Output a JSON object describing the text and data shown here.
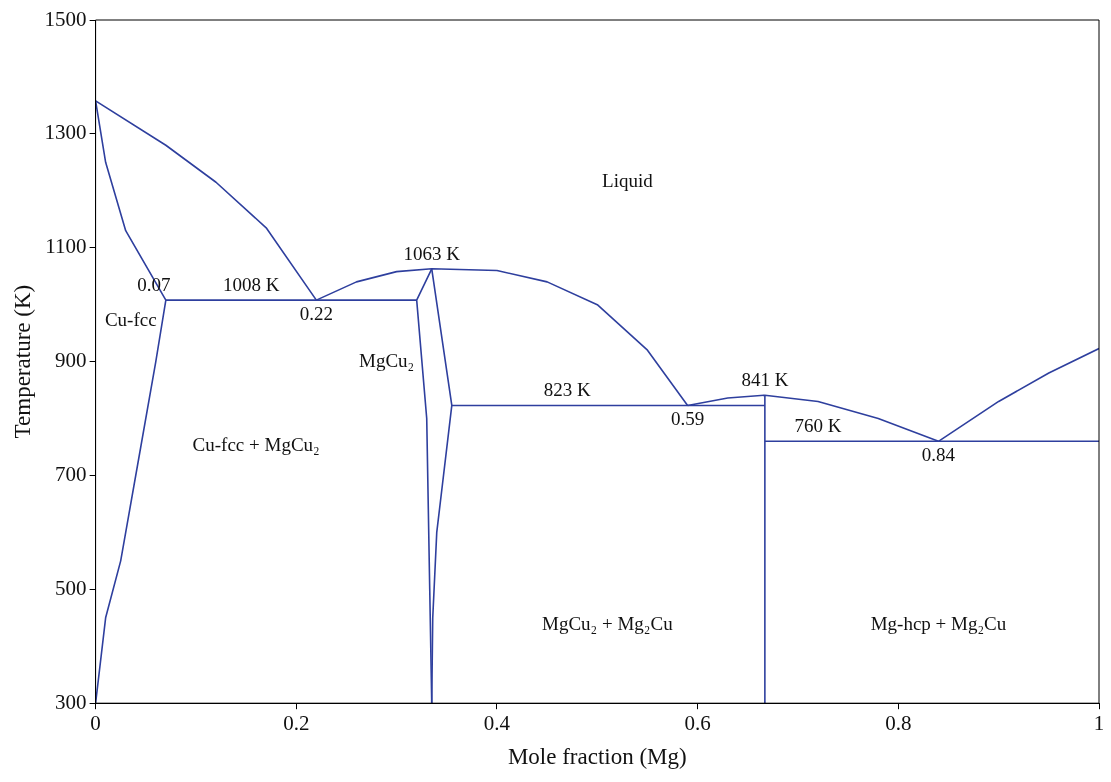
{
  "chart_data": {
    "type": "line",
    "xlabel": "Mole fraction (Mg)",
    "ylabel": "Temperature (K)",
    "xlim": [
      0,
      1
    ],
    "ylim": [
      300,
      1500
    ],
    "xticks": [
      0,
      0.2,
      0.4,
      0.6,
      0.8,
      1
    ],
    "yticks": [
      300,
      500,
      700,
      900,
      1100,
      1300,
      1500
    ],
    "grid": false,
    "legend": false,
    "marker": "none",
    "line_style": "solid",
    "series": [
      {
        "color": "#2e3f9e",
        "x": [
          0,
          0.07,
          0.12,
          0.17,
          0.22
        ],
        "values": [
          1358,
          1280,
          1215,
          1135,
          1008
        ]
      },
      {
        "color": "#2e3f9e",
        "x": [
          0,
          0.01,
          0.03,
          0.07
        ],
        "values": [
          1358,
          1250,
          1130,
          1008
        ]
      },
      {
        "color": "#2e3f9e",
        "x": [
          0.07,
          0.06,
          0.045,
          0.025,
          0.01,
          0
        ],
        "values": [
          1008,
          900,
          750,
          550,
          450,
          300
        ]
      },
      {
        "color": "#2e3f9e",
        "x": [
          0.07,
          0.32
        ],
        "values": [
          1008,
          1008
        ]
      },
      {
        "color": "#2e3f9e",
        "x": [
          0.22,
          0.26,
          0.3,
          0.335,
          0.4,
          0.45,
          0.5,
          0.55,
          0.59
        ],
        "values": [
          1008,
          1040,
          1058,
          1063,
          1060,
          1040,
          1000,
          920,
          823
        ]
      },
      {
        "color": "#2e3f9e",
        "x": [
          0.335,
          0.32,
          0.33,
          0.333,
          0.335
        ],
        "values": [
          1063,
          1008,
          800,
          500,
          300
        ]
      },
      {
        "color": "#2e3f9e",
        "x": [
          0.335,
          0.355,
          0.34,
          0.336,
          0.335
        ],
        "values": [
          1063,
          823,
          600,
          450,
          300
        ]
      },
      {
        "color": "#2e3f9e",
        "x": [
          0.355,
          0.667
        ],
        "values": [
          823,
          823
        ]
      },
      {
        "color": "#2e3f9e",
        "x": [
          0.59,
          0.63,
          0.667,
          0.72,
          0.78,
          0.84
        ],
        "values": [
          823,
          836,
          841,
          830,
          800,
          760
        ]
      },
      {
        "color": "#2e3f9e",
        "x": [
          0.667,
          0.667
        ],
        "values": [
          300,
          841
        ]
      },
      {
        "color": "#2e3f9e",
        "x": [
          0.667,
          1
        ],
        "values": [
          760,
          760
        ]
      },
      {
        "color": "#2e3f9e",
        "x": [
          0.84,
          0.9,
          0.95,
          1
        ],
        "values": [
          760,
          830,
          880,
          923
        ]
      }
    ],
    "annotations": [
      "Liquid",
      {
        "text": "0.07",
        "x": 0.07,
        "y": 1008
      },
      {
        "text": "1008 K",
        "x": 0.155,
        "y": 1008
      },
      {
        "text": "0.22",
        "x": 0.22,
        "y": 1008
      },
      {
        "text": "1063 K",
        "x": 0.335,
        "y": 1063
      },
      "Cu-fcc",
      "MgCu₂",
      {
        "text": "823 K",
        "x": 0.47,
        "y": 823
      },
      {
        "text": "0.59",
        "x": 0.59,
        "y": 823
      },
      {
        "text": "841 K",
        "x": 0.667,
        "y": 841
      },
      {
        "text": "760 K",
        "x": 0.72,
        "y": 760
      },
      {
        "text": "0.84",
        "x": 0.84,
        "y": 760
      },
      "Cu-fcc + MgCu₂",
      "MgCu₂ + Mg₂Cu",
      "Mg-hcp + Mg₂Cu"
    ]
  }
}
